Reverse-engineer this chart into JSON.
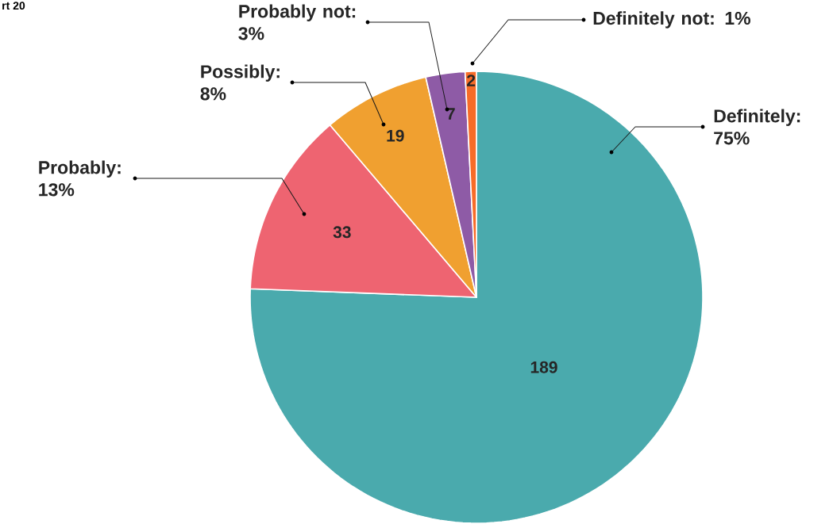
{
  "chart_data": {
    "type": "pie",
    "title": "rt 20",
    "categories": [
      "Definitely: 75%",
      "Probably: 13%",
      "Possibly: 8%",
      "Probably not: 3%",
      "Definitely not: 1%"
    ],
    "values": [
      189,
      33,
      19,
      7,
      2
    ],
    "colors": [
      "#4aaaad",
      "#ee6471",
      "#f0a030",
      "#8e5ba6",
      "#f76c28"
    ],
    "data_labels": true
  }
}
